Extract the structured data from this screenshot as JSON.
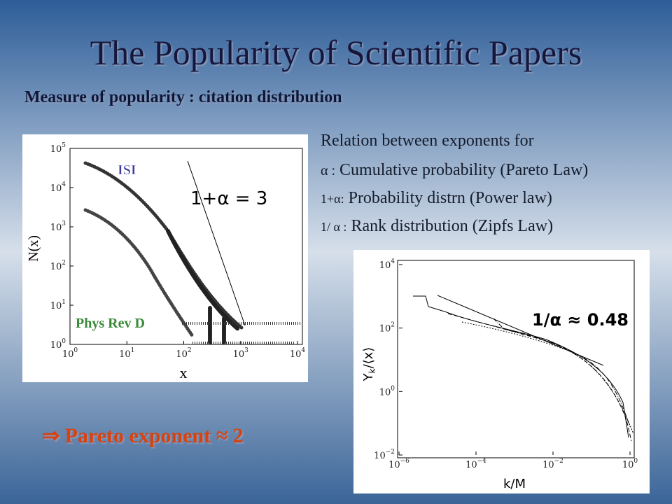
{
  "title": "The Popularity of Scientific Papers",
  "subtitle": "Measure of popularity : citation distribution",
  "relations": {
    "heading": "Relation between exponents for",
    "lines": [
      {
        "symbol": "α :",
        "text": "Cumulative probability (Pareto Law)"
      },
      {
        "symbol": "1+α:",
        "text": "Probability distrn (Power law)"
      },
      {
        "symbol": "1/ α :",
        "text": "Rank distribution (Zipfs Law)"
      }
    ]
  },
  "left_plot": {
    "y_label": "N(x)",
    "x_label": "x",
    "series_labels": [
      "ISI",
      "Phys Rev D"
    ],
    "annotation": "1+α = 3",
    "xticks": [
      {
        "base": "10",
        "exp": "0"
      },
      {
        "base": "10",
        "exp": "1"
      },
      {
        "base": "10",
        "exp": "2"
      },
      {
        "base": "10",
        "exp": "3"
      },
      {
        "base": "10",
        "exp": "4"
      }
    ],
    "yticks": [
      {
        "base": "10",
        "exp": "0"
      },
      {
        "base": "10",
        "exp": "1"
      },
      {
        "base": "10",
        "exp": "2"
      },
      {
        "base": "10",
        "exp": "3"
      },
      {
        "base": "10",
        "exp": "4"
      },
      {
        "base": "10",
        "exp": "5"
      }
    ]
  },
  "right_plot": {
    "y_label": {
      "main": "Y",
      "sub": "k",
      "rest": "/⟨x⟩"
    },
    "x_label": "k/M",
    "annotation": "1/α ≈ 0.48",
    "xticks": [
      {
        "base": "10",
        "exp": "−6"
      },
      {
        "base": "10",
        "exp": "−4"
      },
      {
        "base": "10",
        "exp": "−2"
      },
      {
        "base": "10",
        "exp": "0"
      }
    ],
    "yticks": [
      {
        "base": "10",
        "exp": "−2"
      },
      {
        "base": "10",
        "exp": "0"
      },
      {
        "base": "10",
        "exp": "2"
      },
      {
        "base": "10",
        "exp": "4"
      }
    ]
  },
  "conclusion": "⇒ Pareto exponent ≈ 2"
}
